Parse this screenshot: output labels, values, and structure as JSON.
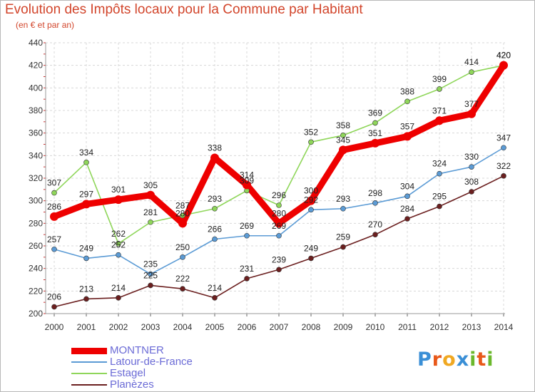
{
  "title": "Evolution des Impôts locaux pour la Commune par Habitant",
  "subtitle": "(en € et par an)",
  "logo": {
    "text": "Proxiti",
    "colors": [
      "#3a8fd6",
      "#e8591a",
      "#f0a822",
      "#3a8fd6",
      "#6bb82c",
      "#e8591a",
      "#6bb82c"
    ]
  },
  "chart_data": {
    "type": "line",
    "x": [
      2000,
      2001,
      2002,
      2003,
      2004,
      2005,
      2006,
      2007,
      2008,
      2009,
      2010,
      2011,
      2012,
      2013,
      2014
    ],
    "ylim": [
      200,
      440
    ],
    "yticks": [
      200,
      220,
      240,
      260,
      280,
      300,
      320,
      340,
      360,
      380,
      400,
      420,
      440
    ],
    "grid": true,
    "legend_position": "bottom-left",
    "series": [
      {
        "name": "MONTNER",
        "color": "#ee0000",
        "values": [
          286,
          297,
          301,
          305,
          280,
          338,
          314,
          280,
          300,
          345,
          351,
          357,
          371,
          377,
          420
        ]
      },
      {
        "name": "Latour-de-France",
        "color": "#5b9bd5",
        "values": [
          257,
          249,
          252,
          235,
          250,
          266,
          269,
          269,
          292,
          293,
          298,
          304,
          324,
          330,
          347
        ]
      },
      {
        "name": "Estagel",
        "color": "#8fd65a",
        "values": [
          307,
          334,
          262,
          281,
          287,
          293,
          309,
          296,
          352,
          358,
          369,
          388,
          399,
          414,
          420
        ]
      },
      {
        "name": "Planèzes",
        "color": "#6b1f1f",
        "values": [
          206,
          213,
          214,
          225,
          222,
          214,
          231,
          239,
          249,
          259,
          270,
          284,
          295,
          308,
          322
        ]
      }
    ]
  }
}
